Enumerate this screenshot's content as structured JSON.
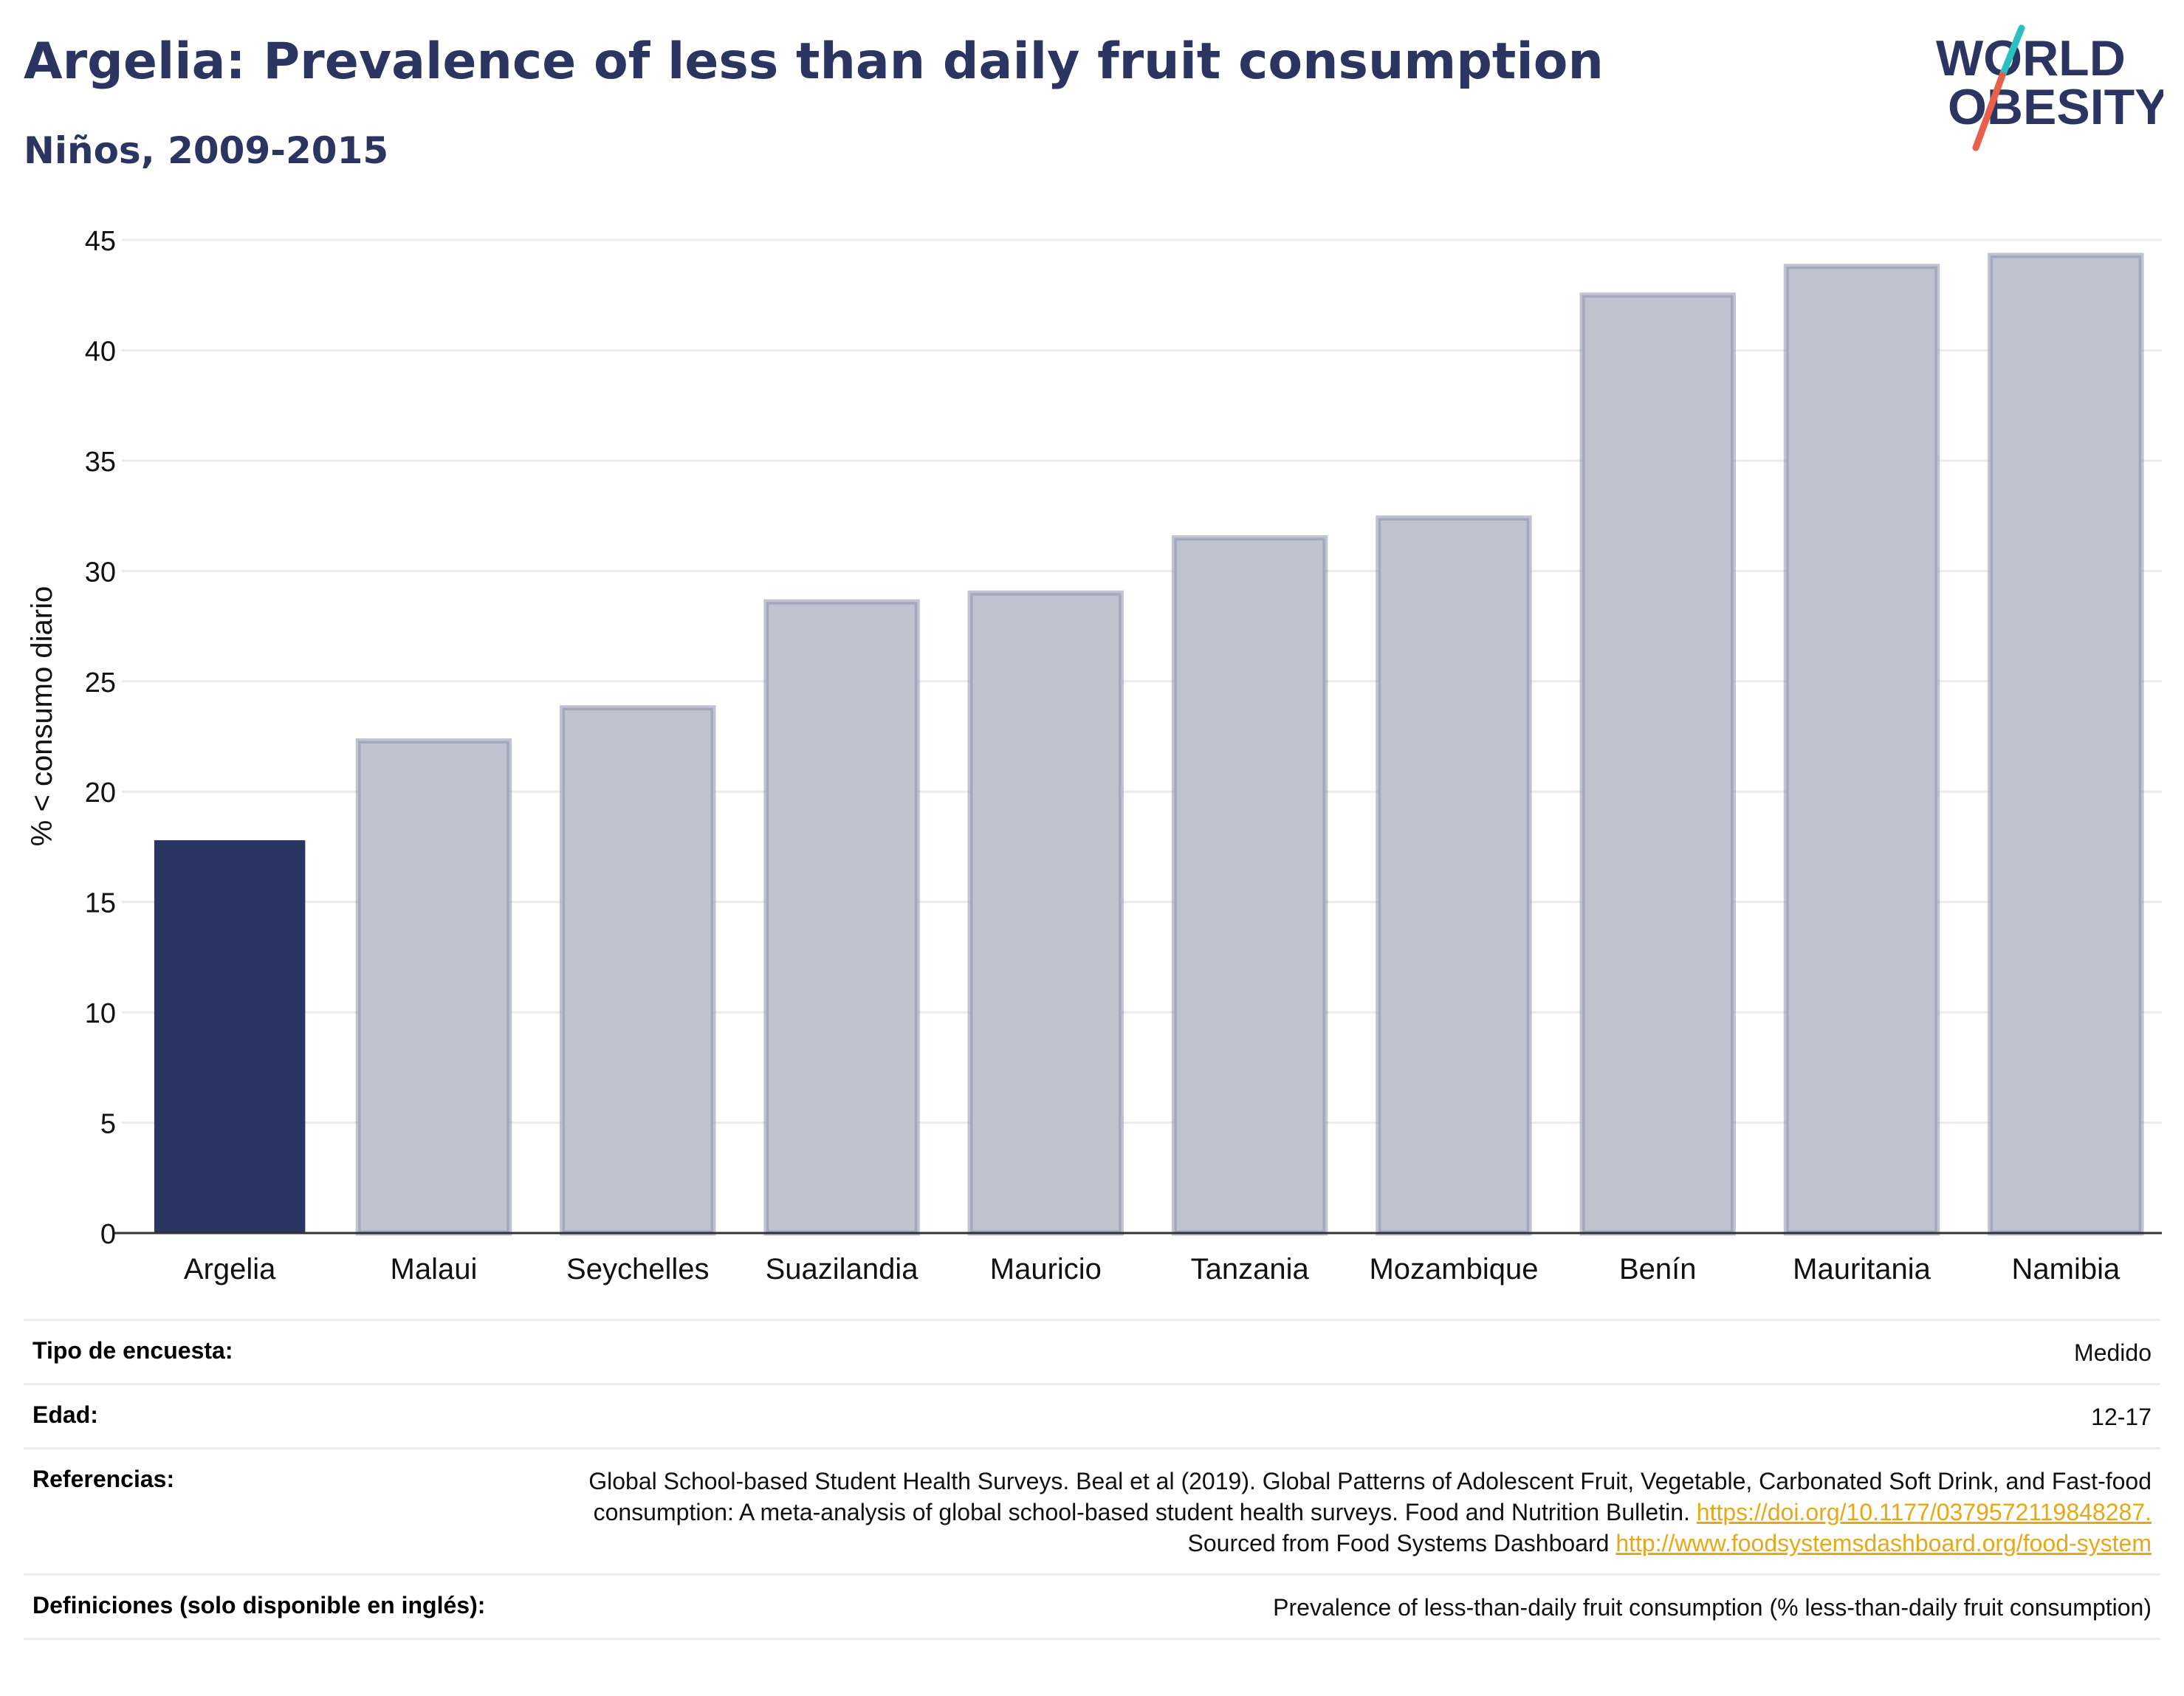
{
  "header": {
    "title": "Argelia: Prevalence of less than daily fruit consumption",
    "subtitle": "Niños, 2009-2015"
  },
  "logo": {
    "line1": "WORLD",
    "line2": "OBESITY",
    "colors": {
      "text": "#2b3561",
      "slash_teal": "#2bbfbf",
      "slash_red": "#e8604c"
    }
  },
  "colors": {
    "highlight_bar": "#2b3561",
    "other_bar_fill": "#bfc2cf",
    "other_bar_stroke": "#8c93ad",
    "grid": "#ebebeb",
    "axis": "#333333",
    "link": "#e6a817"
  },
  "chart_data": {
    "type": "bar",
    "title": "",
    "xlabel": "",
    "ylabel": "% < consumo diario",
    "ylim": [
      0,
      45
    ],
    "yticks": [
      0,
      5,
      10,
      15,
      20,
      25,
      30,
      35,
      40,
      45
    ],
    "grid": true,
    "highlight": "Argelia",
    "categories": [
      "Argelia",
      "Malaui",
      "Seychelles",
      "Suazilandia",
      "Mauricio",
      "Tanzania",
      "Mozambique",
      "Benín",
      "Mauritania",
      "Namibia"
    ],
    "values": [
      17.8,
      22.3,
      23.8,
      28.6,
      29.0,
      31.5,
      32.4,
      42.5,
      43.8,
      44.3
    ]
  },
  "info": {
    "survey_type_label": "Tipo de encuesta:",
    "survey_type_value": "Medido",
    "age_label": "Edad:",
    "age_value": "12-17",
    "references_label": "Referencias:",
    "references_text": "Global School-based Student Health Surveys. Beal et al (2019). Global Patterns of Adolescent Fruit, Vegetable, Carbonated Soft Drink, and Fast-food consumption: A meta-analysis of global school-based student health surveys. Food and Nutrition Bulletin.",
    "references_doi": "https://doi.org/10.1177/0379572119848287.",
    "references_source_text": "Sourced from Food Systems Dashboard",
    "references_source_link": "http://www.foodsystemsdashboard.org/food-system",
    "definitions_label": "Definiciones (solo disponible en inglés):",
    "definitions_value": "Prevalence of less-than-daily fruit consumption (% less-than-daily fruit consumption)"
  }
}
